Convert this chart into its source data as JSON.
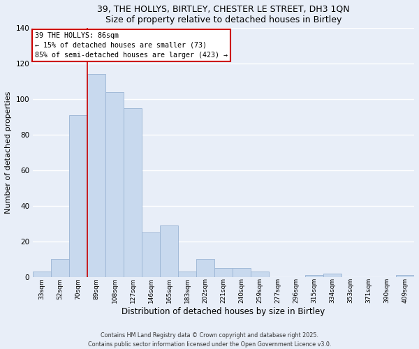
{
  "title1": "39, THE HOLLYS, BIRTLEY, CHESTER LE STREET, DH3 1QN",
  "title2": "Size of property relative to detached houses in Birtley",
  "xlabel": "Distribution of detached houses by size in Birtley",
  "ylabel": "Number of detached properties",
  "bin_labels": [
    "33sqm",
    "52sqm",
    "70sqm",
    "89sqm",
    "108sqm",
    "127sqm",
    "146sqm",
    "165sqm",
    "183sqm",
    "202sqm",
    "221sqm",
    "240sqm",
    "259sqm",
    "277sqm",
    "296sqm",
    "315sqm",
    "334sqm",
    "353sqm",
    "371sqm",
    "390sqm",
    "409sqm"
  ],
  "bar_values": [
    3,
    10,
    91,
    114,
    104,
    95,
    25,
    29,
    3,
    10,
    5,
    5,
    3,
    0,
    0,
    1,
    2,
    0,
    0,
    0,
    1
  ],
  "bar_color": "#c8d9ee",
  "bar_edge_color": "#9ab4d4",
  "vline_color": "#cc0000",
  "ylim": [
    0,
    140
  ],
  "yticks": [
    0,
    20,
    40,
    60,
    80,
    100,
    120,
    140
  ],
  "annotation_title": "39 THE HOLLYS: 86sqm",
  "annotation_line1": "← 15% of detached houses are smaller (73)",
  "annotation_line2": "85% of semi-detached houses are larger (423) →",
  "annotation_box_color": "#ffffff",
  "annotation_box_edge": "#cc0000",
  "footer1": "Contains HM Land Registry data © Crown copyright and database right 2025.",
  "footer2": "Contains public sector information licensed under the Open Government Licence v3.0.",
  "background_color": "#e8eef8",
  "grid_color": "#ffffff"
}
